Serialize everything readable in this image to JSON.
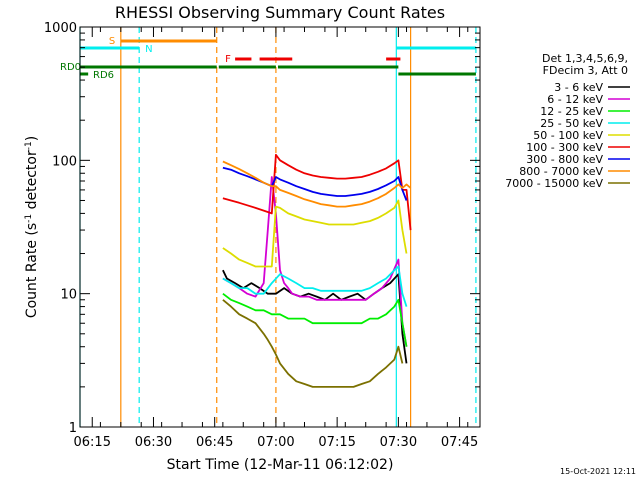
{
  "chart_data": {
    "type": "line",
    "title": "RHESSI Observing Summary Count Rates",
    "xlabel": "Start Time (12-Mar-11 06:12:02)",
    "ylabel_parts": [
      "Count Rate (s",
      "-1",
      " detector",
      "-1",
      ")"
    ],
    "y_scale": "log",
    "xlim_min": [
      0,
      98
    ],
    "ylim": [
      1,
      1000
    ],
    "x_ticks": [
      {
        "min": 3,
        "label": "06:15"
      },
      {
        "min": 18,
        "label": "06:30"
      },
      {
        "min": 33,
        "label": "06:45"
      },
      {
        "min": 48,
        "label": "07:00"
      },
      {
        "min": 63,
        "label": "07:15"
      },
      {
        "min": 78,
        "label": "07:30"
      },
      {
        "min": 93,
        "label": "07:45"
      }
    ],
    "y_ticks": [
      {
        "value": 1,
        "label": "1"
      },
      {
        "value": 10,
        "label": "10"
      },
      {
        "value": 100,
        "label": "100"
      },
      {
        "value": 1000,
        "label": "1000"
      }
    ],
    "legend": {
      "placement": "right",
      "header": [
        "Det 1,3,4,5,6,9,",
        "FDecim 3, Att 0"
      ],
      "entries": [
        {
          "label": "3 - 6 keV",
          "color": "#000000"
        },
        {
          "label": "6 - 12 keV",
          "color": "#d400d4"
        },
        {
          "label": "12 - 25 keV",
          "color": "#00ee00"
        },
        {
          "label": "25 - 50 keV",
          "color": "#00eeee"
        },
        {
          "label": "50 - 100 keV",
          "color": "#dddd00"
        },
        {
          "label": "100 - 300 keV",
          "color": "#ee0000"
        },
        {
          "label": "300 - 800 keV",
          "color": "#0000ee"
        },
        {
          "label": "800 - 7000 keV",
          "color": "#ff8c00"
        },
        {
          "label": "7000 - 15000 keV",
          "color": "#7b7000"
        }
      ]
    },
    "series": [
      {
        "name": "3 - 6 keV",
        "color": "#000000",
        "x": [
          35,
          36,
          38,
          40,
          42,
          44,
          46,
          48,
          50,
          52,
          54,
          56,
          58,
          60,
          62,
          64,
          66,
          68,
          70,
          72,
          74,
          76,
          78,
          79,
          80
        ],
        "values": [
          15,
          13,
          12,
          11,
          12,
          11,
          10,
          10,
          11,
          10,
          9.5,
          10,
          9.5,
          9,
          10,
          9,
          9.5,
          10,
          9,
          10,
          11,
          12,
          14,
          5,
          3
        ]
      },
      {
        "name": "6 - 12 keV",
        "color": "#d400d4",
        "x": [
          35,
          37,
          39,
          41,
          43,
          45,
          46,
          47,
          48,
          49,
          50,
          51,
          52,
          54,
          56,
          58,
          60,
          62,
          64,
          66,
          68,
          70,
          72,
          74,
          76,
          78,
          79,
          80
        ],
        "values": [
          13,
          12,
          11,
          10,
          9.5,
          12,
          30,
          75,
          40,
          15,
          12,
          11,
          10,
          9.5,
          9.5,
          9,
          9,
          9,
          9,
          9,
          9,
          9,
          10,
          11,
          13,
          18,
          6,
          4
        ]
      },
      {
        "name": "12 - 25 keV",
        "color": "#00ee00",
        "x": [
          35,
          37,
          39,
          41,
          43,
          45,
          47,
          49,
          51,
          53,
          55,
          57,
          59,
          61,
          63,
          65,
          67,
          69,
          71,
          73,
          75,
          77,
          78,
          79,
          80
        ],
        "values": [
          10,
          9,
          8.5,
          8,
          7.5,
          7.5,
          7,
          7,
          6.5,
          6.5,
          6.5,
          6,
          6,
          6,
          6,
          6,
          6,
          6,
          6.5,
          6.5,
          7,
          8,
          9,
          6,
          4
        ]
      },
      {
        "name": "25 - 50 keV",
        "color": "#00eeee",
        "x": [
          35,
          37,
          39,
          41,
          43,
          45,
          47,
          49,
          51,
          53,
          55,
          57,
          59,
          61,
          63,
          65,
          67,
          69,
          71,
          73,
          75,
          77,
          78,
          79,
          80
        ],
        "values": [
          13,
          12,
          11,
          11,
          10,
          10,
          12,
          14,
          13,
          12,
          11,
          11,
          10.5,
          10.5,
          10.5,
          10.5,
          10.5,
          10.5,
          11,
          12,
          13,
          15,
          16,
          10,
          8
        ]
      },
      {
        "name": "50 - 100 keV",
        "color": "#dddd00",
        "x": [
          35,
          37,
          39,
          41,
          43,
          45,
          47,
          48,
          49,
          51,
          53,
          55,
          57,
          59,
          61,
          63,
          65,
          67,
          69,
          71,
          73,
          75,
          77,
          78,
          79,
          80
        ],
        "values": [
          22,
          20,
          18,
          17,
          16,
          16,
          16,
          45,
          44,
          40,
          38,
          36,
          35,
          34,
          33,
          33,
          33,
          33,
          34,
          35,
          37,
          40,
          44,
          50,
          30,
          20
        ]
      },
      {
        "name": "100 - 300 keV",
        "color": "#ee0000",
        "x": [
          35,
          37,
          39,
          41,
          43,
          45,
          47,
          48,
          49,
          51,
          53,
          55,
          57,
          59,
          61,
          63,
          65,
          67,
          69,
          71,
          73,
          75,
          77,
          78,
          79,
          80,
          81
        ],
        "values": [
          52,
          50,
          48,
          46,
          44,
          42,
          40,
          110,
          100,
          92,
          85,
          80,
          77,
          75,
          74,
          73,
          73,
          74,
          75,
          78,
          82,
          87,
          95,
          100,
          60,
          60,
          30
        ]
      },
      {
        "name": "300 - 800 keV",
        "color": "#0000ee",
        "x": [
          35,
          37,
          39,
          41,
          43,
          45,
          47,
          48,
          49,
          51,
          53,
          55,
          57,
          59,
          61,
          63,
          65,
          67,
          69,
          71,
          73,
          75,
          77,
          78,
          79,
          80
        ],
        "values": [
          88,
          85,
          80,
          76,
          72,
          68,
          64,
          75,
          72,
          68,
          64,
          61,
          58,
          56,
          55,
          54,
          54,
          55,
          56,
          58,
          61,
          65,
          70,
          75,
          60,
          50
        ]
      },
      {
        "name": "800 - 7000 keV",
        "color": "#ff8c00",
        "x": [
          35,
          37,
          39,
          41,
          43,
          45,
          47,
          48,
          49,
          51,
          53,
          55,
          57,
          59,
          61,
          63,
          65,
          67,
          69,
          71,
          73,
          75,
          77,
          78,
          79,
          80,
          81
        ],
        "values": [
          98,
          92,
          86,
          80,
          74,
          68,
          64,
          64,
          60,
          57,
          54,
          51,
          49,
          47,
          46,
          45,
          45,
          46,
          47,
          49,
          52,
          56,
          62,
          66,
          62,
          66,
          62
        ]
      },
      {
        "name": "7000 - 15000 keV",
        "color": "#7b7000",
        "x": [
          35,
          37,
          39,
          41,
          43,
          45,
          46,
          47,
          48,
          49,
          51,
          53,
          55,
          57,
          59,
          61,
          63,
          65,
          67,
          69,
          71,
          73,
          75,
          77,
          78,
          79
        ],
        "values": [
          9,
          8,
          7,
          6.5,
          6,
          5,
          4.5,
          4,
          3.5,
          3,
          2.5,
          2.2,
          2.1,
          2,
          2,
          2,
          2,
          2,
          2,
          2.1,
          2.2,
          2.5,
          2.8,
          3.2,
          4,
          3
        ]
      }
    ],
    "flags": {
      "saa_label": "S",
      "night_label": "N",
      "flare_label": "F",
      "rd0_label": "RD0",
      "rd6_label": "RD6",
      "saa_intervals": [
        [
          10,
          33.5
        ]
      ],
      "night_intervals": [
        [
          0,
          14.5
        ],
        [
          77.5,
          97
        ]
      ],
      "flare_intervals": [
        [
          38,
          42
        ],
        [
          44,
          52
        ],
        [
          75,
          78.5
        ]
      ],
      "rd0_intervals": [
        [
          0,
          33.5
        ],
        [
          34,
          48
        ],
        [
          48.5,
          78
        ]
      ],
      "rd6_intervals": [
        [
          0,
          2
        ],
        [
          78,
          97
        ]
      ],
      "solid_markers": [
        {
          "min": 0,
          "color": "#00eeee"
        },
        {
          "min": 10,
          "color": "#ff8c00"
        },
        {
          "min": 77.5,
          "color": "#00eeee"
        },
        {
          "min": 81,
          "color": "#ff8c00"
        }
      ],
      "dashed_markers": [
        {
          "min": 14.5,
          "color": "#00eeee"
        },
        {
          "min": 33.5,
          "color": "#ff8c00"
        },
        {
          "min": 48,
          "color": "#ff8c00"
        },
        {
          "min": 97,
          "color": "#00eeee"
        }
      ]
    },
    "timestamp": "15-Oct-2021 12:11"
  }
}
